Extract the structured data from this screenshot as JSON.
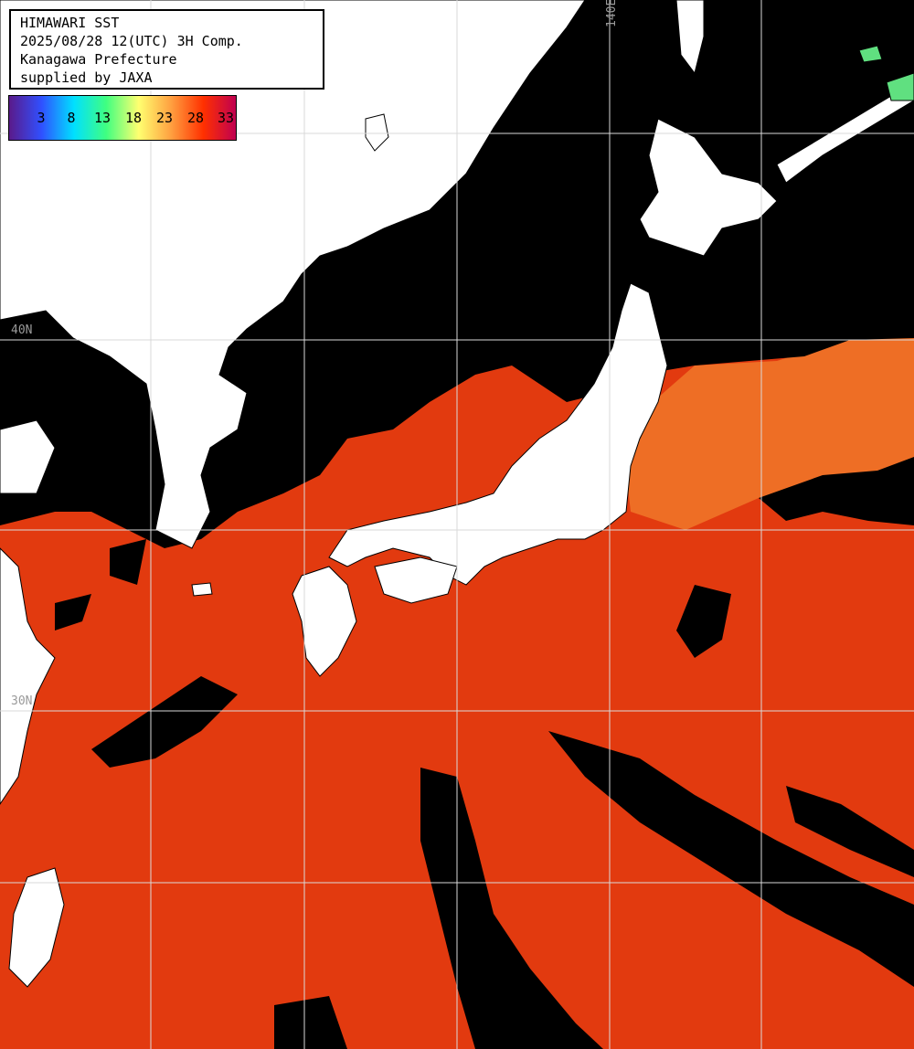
{
  "title": {
    "line1": "HIMAWARI SST",
    "line2": "2025/08/28 12(UTC) 3H Comp.",
    "line3": "Kanagawa Prefecture",
    "line4": "supplied by JAXA"
  },
  "legend": {
    "ticks": [
      "3",
      "8",
      "13",
      "18",
      "23",
      "28",
      "33"
    ],
    "colors": [
      "#5a1a8a",
      "#3050ff",
      "#00e0ff",
      "#40ff80",
      "#ffff70",
      "#ffa040",
      "#ff3000",
      "#c00050"
    ]
  },
  "grid_labels": {
    "lon": "140E",
    "lat40": "40N",
    "lat30": "30N"
  },
  "colors": {
    "land": "#ffffff",
    "cloud": "#000000",
    "sea_warm": "#e63a0e",
    "sea_cool": "#f37224",
    "grid": "#d9d9d9"
  }
}
